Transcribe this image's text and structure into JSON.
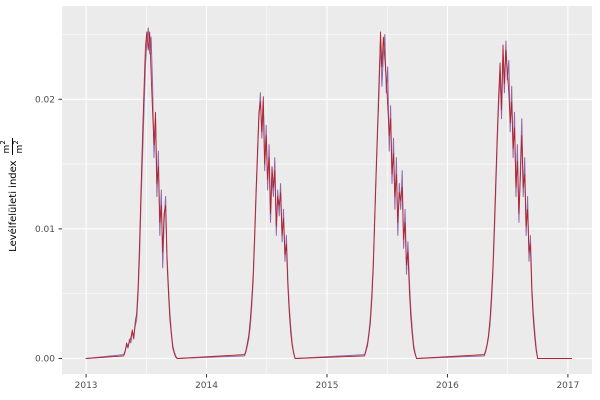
{
  "chart_data": {
    "type": "line",
    "title": "",
    "xlabel": "",
    "ylabel": {
      "text": "Levélfelületi index",
      "frac_num": "m",
      "frac_num_sup": "2",
      "frac_den": "m",
      "frac_den_sup": "2"
    },
    "legend": "none",
    "grid": "on",
    "panel_background": "#EBEBEB",
    "grid_major_color": "#FFFFFF",
    "grid_minor_color": "#FFFFFF",
    "tick_color": "#333333",
    "tick_label_color": "#4D4D4D",
    "x_domain": [
      2012.8,
      2017.2
    ],
    "y_domain": [
      -0.0012,
      0.0272
    ],
    "x_data_range": [
      2013.0,
      2017.03
    ],
    "x_ticks": [
      {
        "value": 2013,
        "label": "2013"
      },
      {
        "value": 2014,
        "label": "2014"
      },
      {
        "value": 2015,
        "label": "2015"
      },
      {
        "value": 2016,
        "label": "2016"
      },
      {
        "value": 2017,
        "label": "2017"
      }
    ],
    "y_ticks": [
      {
        "value": 0.0,
        "label": "0.00"
      },
      {
        "value": 0.01,
        "label": "0.01"
      },
      {
        "value": 0.02,
        "label": "0.02"
      }
    ],
    "x_minor_ticks": [
      2013.5,
      2014.5,
      2015.5,
      2016.5
    ],
    "y_minor_ticks": [
      0.005,
      0.015,
      0.025
    ],
    "series": [
      {
        "name": "lai-series-purple",
        "color": "#9166AB",
        "width": 1.0,
        "segments": [
          {
            "start": 2013.312,
            "dt": 0.012,
            "values": [
              0.0003,
              0.0006,
              0.001,
              0.0008,
              0.0015,
              0.0012,
              0.002,
              0.0018,
              0.0025,
              0.003,
              0.005,
              0.008,
              0.012,
              0.0155,
              0.019,
              0.0225,
              0.0245,
              0.0255,
              0.0235,
              0.0248,
              0.021,
              0.0155,
              0.0185,
              0.0125,
              0.016,
              0.0095,
              0.013,
              0.007,
              0.0105,
              0.0125,
              0.008,
              0.0055,
              0.0035,
              0.002,
              0.001,
              0.0005,
              0.0002,
              0
            ]
          },
          {
            "start": 2014.315,
            "dt": 0.012,
            "values": [
              0.0002,
              0.0005,
              0.001,
              0.0015,
              0.0025,
              0.004,
              0.006,
              0.009,
              0.0125,
              0.0155,
              0.0185,
              0.0205,
              0.017,
              0.0195,
              0.0145,
              0.018,
              0.013,
              0.0165,
              0.0105,
              0.014,
              0.0125,
              0.0155,
              0.0095,
              0.013,
              0.011,
              0.0135,
              0.009,
              0.0115,
              0.0075,
              0.0095,
              0.006,
              0.004,
              0.0025,
              0.0012,
              0.0005,
              0
            ]
          },
          {
            "start": 2015.312,
            "dt": 0.012,
            "values": [
              0.0003,
              0.0007,
              0.0012,
              0.002,
              0.0032,
              0.005,
              0.0075,
              0.011,
              0.0145,
              0.018,
              0.0215,
              0.0245,
              0.021,
              0.0235,
              0.025,
              0.0205,
              0.0225,
              0.016,
              0.0195,
              0.0135,
              0.017,
              0.0115,
              0.0155,
              0.0095,
              0.0135,
              0.0115,
              0.0145,
              0.0085,
              0.0115,
              0.0065,
              0.009,
              0.006,
              0.0038,
              0.0022,
              0.001,
              0.0004,
              0
            ]
          },
          {
            "start": 2016.305,
            "dt": 0.012,
            "values": [
              0.0002,
              0.0005,
              0.001,
              0.0016,
              0.0026,
              0.0042,
              0.0065,
              0.0095,
              0.013,
              0.0165,
              0.0195,
              0.022,
              0.0185,
              0.0235,
              0.0205,
              0.0245,
              0.0215,
              0.023,
              0.0175,
              0.021,
              0.0155,
              0.019,
              0.0125,
              0.0165,
              0.0105,
              0.0145,
              0.0185,
              0.0125,
              0.0155,
              0.0095,
              0.0125,
              0.0075,
              0.0095,
              0.0055,
              0.0035,
              0.002,
              0.0008,
              0
            ]
          }
        ]
      },
      {
        "name": "lai-series-red",
        "color": "#B2242C",
        "width": 0.9,
        "segments": [
          {
            "start": 2013.312,
            "dt": 0.012,
            "values": [
              0.0002,
              0.0005,
              0.0012,
              0.0009,
              0.0013,
              0.0016,
              0.0022,
              0.0015,
              0.0028,
              0.0035,
              0.0055,
              0.009,
              0.013,
              0.017,
              0.0205,
              0.024,
              0.0252,
              0.0238,
              0.0252,
              0.022,
              0.019,
              0.0165,
              0.019,
              0.0135,
              0.0148,
              0.0105,
              0.0118,
              0.0082,
              0.0112,
              0.0118,
              0.0075,
              0.005,
              0.003,
              0.0018,
              0.0008,
              0.0004,
              0.0001,
              0
            ]
          },
          {
            "start": 2014.315,
            "dt": 0.012,
            "values": [
              0.0003,
              0.0006,
              0.0012,
              0.0018,
              0.003,
              0.0045,
              0.0065,
              0.0095,
              0.013,
              0.016,
              0.019,
              0.0198,
              0.0175,
              0.0202,
              0.015,
              0.0172,
              0.0138,
              0.0155,
              0.0112,
              0.0148,
              0.0132,
              0.0145,
              0.0102,
              0.0125,
              0.0118,
              0.0128,
              0.0095,
              0.0108,
              0.008,
              0.0088,
              0.0055,
              0.0035,
              0.002,
              0.001,
              0.0004,
              0
            ]
          },
          {
            "start": 2015.312,
            "dt": 0.012,
            "values": [
              0.0002,
              0.0006,
              0.001,
              0.0018,
              0.0028,
              0.0045,
              0.007,
              0.0105,
              0.014,
              0.0175,
              0.0205,
              0.0252,
              0.0225,
              0.0248,
              0.0232,
              0.0215,
              0.0195,
              0.0172,
              0.0185,
              0.0142,
              0.0158,
              0.0125,
              0.0142,
              0.0105,
              0.0128,
              0.0122,
              0.0132,
              0.0092,
              0.0105,
              0.0072,
              0.0082,
              0.0052,
              0.0032,
              0.0018,
              0.0008,
              0.0003,
              0
            ]
          },
          {
            "start": 2016.305,
            "dt": 0.012,
            "values": [
              0.0003,
              0.0006,
              0.0011,
              0.0018,
              0.003,
              0.0048,
              0.007,
              0.0102,
              0.0138,
              0.0172,
              0.0202,
              0.0228,
              0.0192,
              0.0242,
              0.0212,
              0.0238,
              0.0222,
              0.0205,
              0.0182,
              0.0198,
              0.0162,
              0.0178,
              0.0132,
              0.0152,
              0.0112,
              0.0138,
              0.0172,
              0.0132,
              0.0142,
              0.0102,
              0.0115,
              0.0082,
              0.0088,
              0.005,
              0.003,
              0.0016,
              0.0006,
              0
            ]
          }
        ]
      }
    ]
  }
}
